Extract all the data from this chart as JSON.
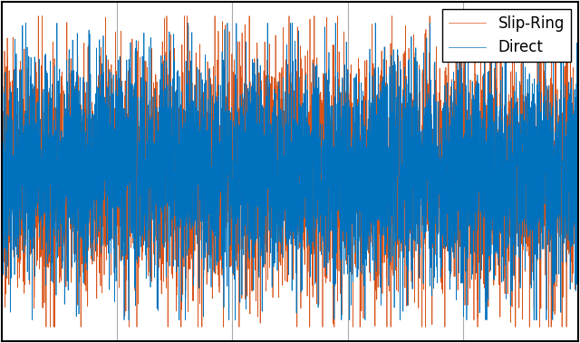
{
  "title": "",
  "xlabel": "",
  "ylabel": "",
  "legend": [
    "Direct",
    "Slip-Ring"
  ],
  "line_colors": [
    "#0072BD",
    "#D95319"
  ],
  "n_points": 5000,
  "direct_seed": 42,
  "slipring_seed": 7,
  "xlim": [
    0,
    5000
  ],
  "ylim": [
    -1.2,
    1.2
  ],
  "background_color": "#ffffff",
  "figure_color": "#ffffff",
  "grid_color": "#aaaaaa",
  "n_xticks_inner": 4,
  "linewidth": 0.5,
  "figsize": [
    6.4,
    3.78
  ],
  "dpi": 100,
  "legend_fontsize": 12,
  "spine_linewidth": 1.5
}
